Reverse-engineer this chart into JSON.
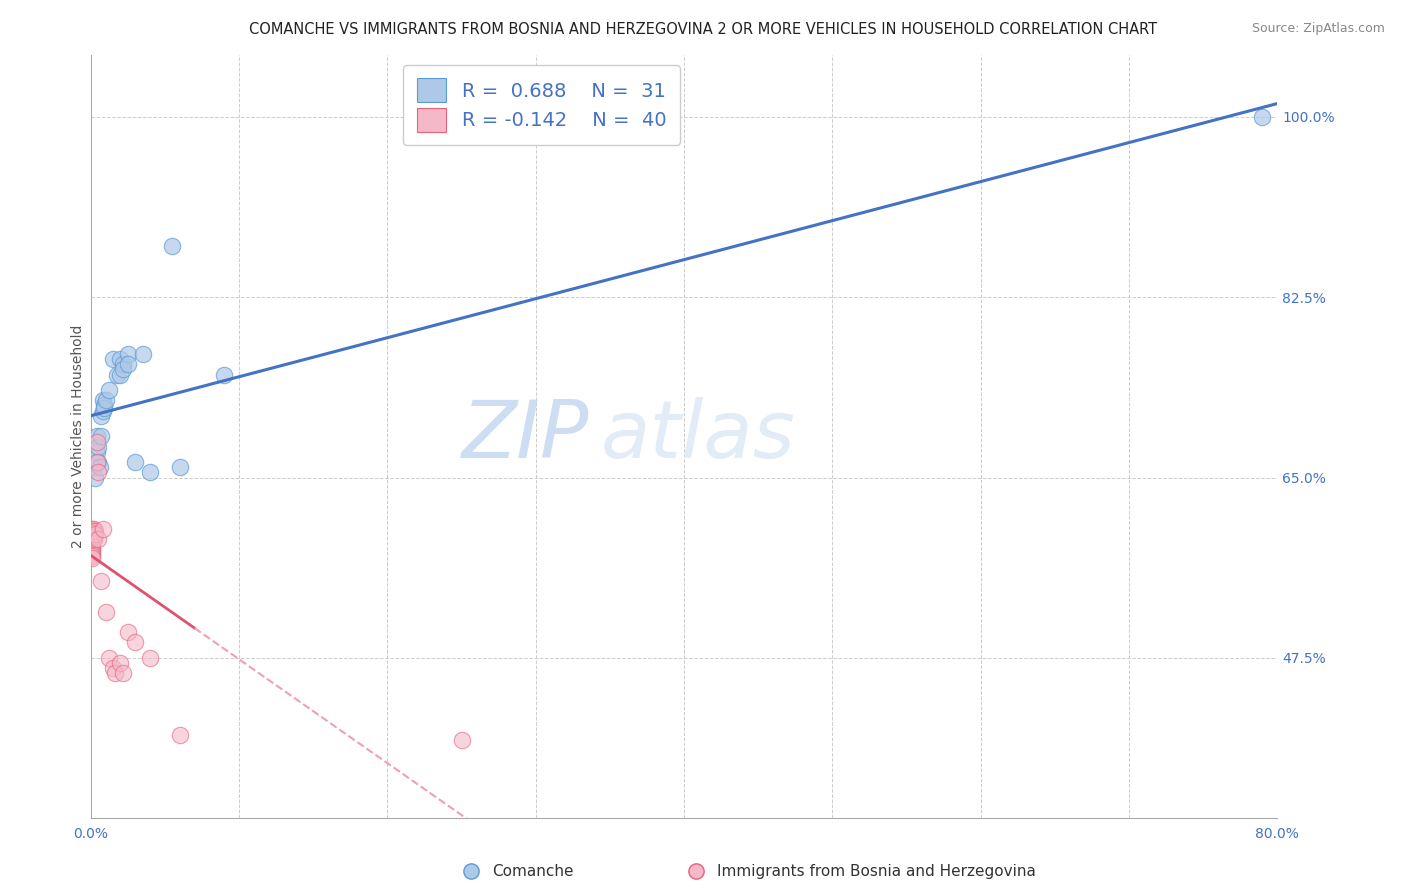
{
  "title": "COMANCHE VS IMMIGRANTS FROM BOSNIA AND HERZEGOVINA 2 OR MORE VEHICLES IN HOUSEHOLD CORRELATION CHART",
  "source": "Source: ZipAtlas.com",
  "ylabel": "2 or more Vehicles in Household",
  "legend_label_1": "Comanche",
  "legend_label_2": "Immigrants from Bosnia and Herzegovina",
  "R1": 0.688,
  "N1": 31,
  "R2": -0.142,
  "N2": 40,
  "xlim": [
    0.0,
    0.8
  ],
  "ylim": [
    0.32,
    1.06
  ],
  "xtick_pos": [
    0.0,
    0.1,
    0.2,
    0.3,
    0.4,
    0.5,
    0.6,
    0.7,
    0.8
  ],
  "xticklabels": [
    "0.0%",
    "",
    "",
    "",
    "",
    "",
    "",
    "",
    "80.0%"
  ],
  "ytick_right_pos": [
    0.475,
    0.65,
    0.825,
    1.0
  ],
  "ytick_right_labels": [
    "47.5%",
    "65.0%",
    "82.5%",
    "100.0%"
  ],
  "grid_color": "#cccccc",
  "watermark_zip": "ZIP",
  "watermark_atlas": "atlas",
  "blue_color": "#aec8e8",
  "blue_edge": "#5b9bd5",
  "pink_color": "#f4b8c8",
  "pink_edge": "#e8607a",
  "blue_line_color": "#4472c4",
  "pink_line_solid": "#e05070",
  "pink_line_dashed": "#f0a0b0",
  "blue_scatter": [
    [
      0.001,
      0.66
    ],
    [
      0.002,
      0.66
    ],
    [
      0.003,
      0.65
    ],
    [
      0.004,
      0.69
    ],
    [
      0.004,
      0.675
    ],
    [
      0.005,
      0.665
    ],
    [
      0.005,
      0.68
    ],
    [
      0.006,
      0.66
    ],
    [
      0.007,
      0.71
    ],
    [
      0.007,
      0.69
    ],
    [
      0.008,
      0.725
    ],
    [
      0.008,
      0.715
    ],
    [
      0.009,
      0.72
    ],
    [
      0.009,
      0.718
    ],
    [
      0.01,
      0.725
    ],
    [
      0.012,
      0.735
    ],
    [
      0.015,
      0.765
    ],
    [
      0.018,
      0.75
    ],
    [
      0.02,
      0.765
    ],
    [
      0.02,
      0.75
    ],
    [
      0.022,
      0.76
    ],
    [
      0.022,
      0.755
    ],
    [
      0.025,
      0.77
    ],
    [
      0.025,
      0.76
    ],
    [
      0.03,
      0.665
    ],
    [
      0.035,
      0.77
    ],
    [
      0.04,
      0.655
    ],
    [
      0.055,
      0.875
    ],
    [
      0.06,
      0.66
    ],
    [
      0.09,
      0.75
    ],
    [
      0.79,
      1.0
    ]
  ],
  "pink_scatter": [
    [
      0.001,
      0.6
    ],
    [
      0.001,
      0.598
    ],
    [
      0.001,
      0.596
    ],
    [
      0.001,
      0.594
    ],
    [
      0.001,
      0.592
    ],
    [
      0.001,
      0.59
    ],
    [
      0.001,
      0.588
    ],
    [
      0.001,
      0.586
    ],
    [
      0.001,
      0.584
    ],
    [
      0.001,
      0.582
    ],
    [
      0.001,
      0.58
    ],
    [
      0.001,
      0.578
    ],
    [
      0.001,
      0.576
    ],
    [
      0.001,
      0.574
    ],
    [
      0.001,
      0.572
    ],
    [
      0.002,
      0.6
    ],
    [
      0.002,
      0.598
    ],
    [
      0.002,
      0.596
    ],
    [
      0.002,
      0.594
    ],
    [
      0.002,
      0.592
    ],
    [
      0.002,
      0.59
    ],
    [
      0.003,
      0.598
    ],
    [
      0.003,
      0.595
    ],
    [
      0.004,
      0.685
    ],
    [
      0.004,
      0.665
    ],
    [
      0.005,
      0.655
    ],
    [
      0.005,
      0.59
    ],
    [
      0.007,
      0.55
    ],
    [
      0.008,
      0.6
    ],
    [
      0.01,
      0.52
    ],
    [
      0.012,
      0.475
    ],
    [
      0.015,
      0.465
    ],
    [
      0.016,
      0.46
    ],
    [
      0.02,
      0.47
    ],
    [
      0.022,
      0.46
    ],
    [
      0.025,
      0.5
    ],
    [
      0.03,
      0.49
    ],
    [
      0.04,
      0.475
    ],
    [
      0.06,
      0.4
    ],
    [
      0.25,
      0.395
    ]
  ],
  "title_fontsize": 10.5,
  "axis_label_fontsize": 10,
  "tick_fontsize": 10,
  "legend_fontsize": 14,
  "source_fontsize": 9
}
